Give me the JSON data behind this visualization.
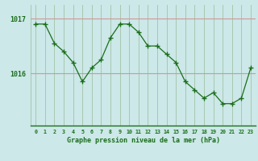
{
  "hours": [
    0,
    1,
    2,
    3,
    4,
    5,
    6,
    7,
    8,
    9,
    10,
    11,
    12,
    13,
    14,
    15,
    16,
    17,
    18,
    19,
    20,
    21,
    22,
    23
  ],
  "pressure": [
    1016.9,
    1016.9,
    1016.55,
    1016.4,
    1016.2,
    1015.85,
    1016.1,
    1016.25,
    1016.65,
    1016.9,
    1016.9,
    1016.75,
    1016.5,
    1016.5,
    1016.35,
    1016.2,
    1015.85,
    1015.7,
    1015.55,
    1015.65,
    1015.45,
    1015.45,
    1015.55,
    1016.1
  ],
  "line_color": "#1a6e1a",
  "marker_color": "#1a6e1a",
  "bg_color": "#cce8e8",
  "grid_color_v": "#99bb99",
  "grid_color_h": "#cc9999",
  "axis_label_color": "#1a6e1a",
  "tick_label_color": "#1a6e1a",
  "xlabel": "Graphe pression niveau de la mer (hPa)",
  "ytick_labels": [
    "1016",
    "1017"
  ],
  "ytick_values": [
    1016,
    1017
  ],
  "ylim": [
    1015.05,
    1017.25
  ],
  "xlim": [
    -0.5,
    23.5
  ]
}
